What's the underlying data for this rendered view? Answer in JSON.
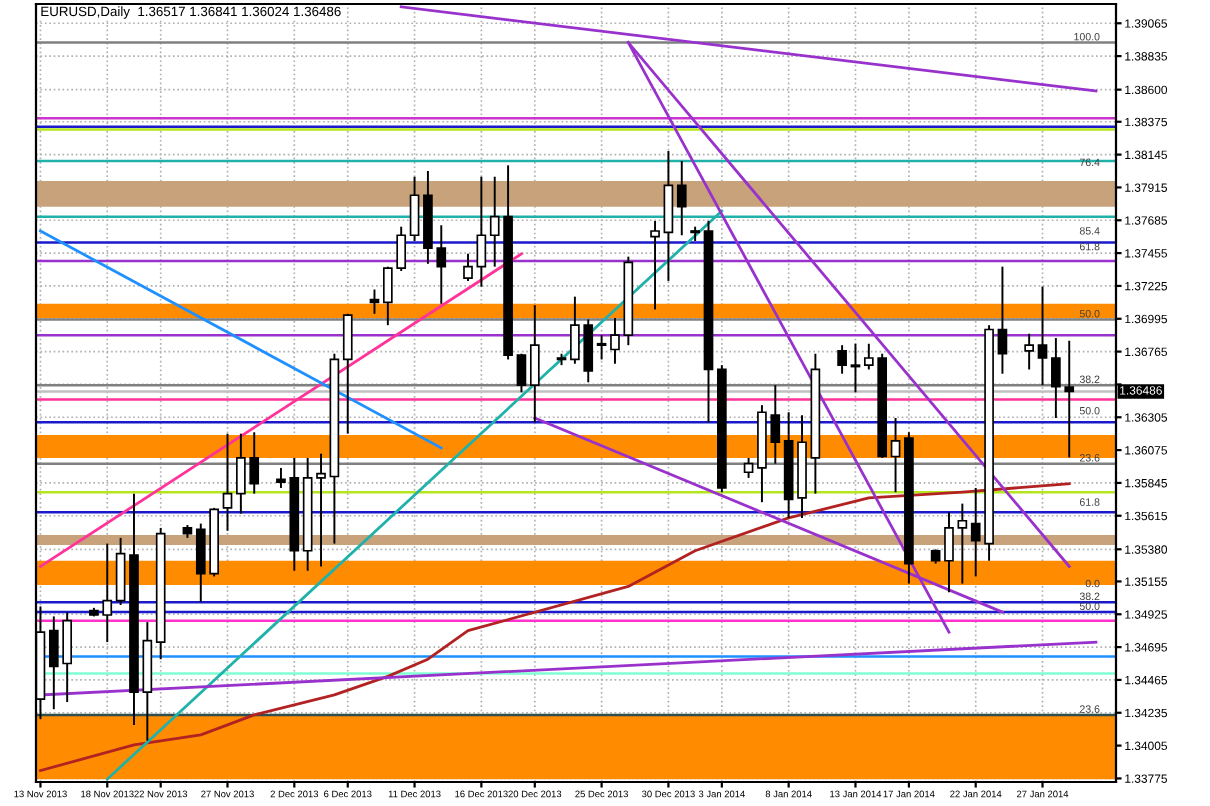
{
  "chart_data": {
    "type": "candlestick",
    "title": "EURUSD,Daily  1.36517 1.36841 1.36024 1.36486",
    "x": [
      "2013-11-13",
      "2013-11-14",
      "2013-11-15",
      "2013-11-17",
      "2013-11-18",
      "2013-11-19",
      "2013-11-20",
      "2013-11-21",
      "2013-11-22",
      "2013-11-24",
      "2013-11-25",
      "2013-11-26",
      "2013-11-27",
      "2013-11-28",
      "2013-11-29",
      "2013-12-01",
      "2013-12-02",
      "2013-12-03",
      "2013-12-04",
      "2013-12-05",
      "2013-12-06",
      "2013-12-08",
      "2013-12-09",
      "2013-12-10",
      "2013-12-11",
      "2013-12-12",
      "2013-12-13",
      "2013-12-15",
      "2013-12-16",
      "2013-12-17",
      "2013-12-18",
      "2013-12-19",
      "2013-12-20",
      "2013-12-22",
      "2013-12-23",
      "2013-12-24",
      "2013-12-25",
      "2013-12-26",
      "2013-12-27",
      "2013-12-29",
      "2013-12-30",
      "2013-12-31",
      "2014-01-01",
      "2014-01-02",
      "2014-01-03",
      "2014-01-05",
      "2014-01-06",
      "2014-01-07",
      "2014-01-08",
      "2014-01-09",
      "2014-01-10",
      "2014-01-12",
      "2014-01-13",
      "2014-01-14",
      "2014-01-15",
      "2014-01-16",
      "2014-01-17",
      "2014-01-19",
      "2014-01-20",
      "2014-01-21",
      "2014-01-22",
      "2014-01-23",
      "2014-01-24",
      "2014-01-26",
      "2014-01-27",
      "2014-01-28",
      "2014-01-29"
    ],
    "ohlc": [
      [
        1.3433,
        1.3498,
        1.3419,
        1.348
      ],
      [
        1.3481,
        1.3491,
        1.3426,
        1.3456
      ],
      [
        1.3458,
        1.3494,
        1.3431,
        1.3488
      ],
      [
        1.3495,
        1.3497,
        1.3491,
        1.3492
      ],
      [
        1.3492,
        1.3542,
        1.3473,
        1.3502
      ],
      [
        1.3502,
        1.3546,
        1.3499,
        1.3535
      ],
      [
        1.3534,
        1.3577,
        1.3415,
        1.3438
      ],
      [
        1.3438,
        1.3487,
        1.3404,
        1.3474
      ],
      [
        1.3473,
        1.3553,
        1.3461,
        1.3549
      ],
      [
        1.3553,
        1.3555,
        1.3546,
        1.3549
      ],
      [
        1.3552,
        1.3556,
        1.3501,
        1.3521
      ],
      [
        1.3521,
        1.3567,
        1.3519,
        1.3566
      ],
      [
        1.3567,
        1.3619,
        1.3551,
        1.3577
      ],
      [
        1.3577,
        1.3619,
        1.3563,
        1.3602
      ],
      [
        1.3602,
        1.362,
        1.3577,
        1.3584
      ],
      [
        1.3587,
        1.3595,
        1.3581,
        1.3585
      ],
      [
        1.3588,
        1.3602,
        1.3523,
        1.3537
      ],
      [
        1.3537,
        1.3602,
        1.3523,
        1.3588
      ],
      [
        1.3588,
        1.3605,
        1.3526,
        1.3591
      ],
      [
        1.3589,
        1.3675,
        1.3542,
        1.3671
      ],
      [
        1.3671,
        1.3703,
        1.3619,
        1.3702
      ],
      [
        1.3713,
        1.372,
        1.3703,
        1.3711
      ],
      [
        1.3711,
        1.3736,
        1.3695,
        1.3735
      ],
      [
        1.3735,
        1.3764,
        1.3733,
        1.3758
      ],
      [
        1.3758,
        1.3799,
        1.3754,
        1.3786
      ],
      [
        1.3786,
        1.3803,
        1.3738,
        1.3749
      ],
      [
        1.3749,
        1.3765,
        1.371,
        1.3736
      ],
      [
        1.3728,
        1.3745,
        1.3726,
        1.3736
      ],
      [
        1.3736,
        1.3799,
        1.3722,
        1.3758
      ],
      [
        1.3758,
        1.3799,
        1.3736,
        1.3771
      ],
      [
        1.3771,
        1.3807,
        1.3671,
        1.3674
      ],
      [
        1.3674,
        1.3675,
        1.3648,
        1.3653
      ],
      [
        1.3653,
        1.3709,
        1.3627,
        1.3681
      ],
      [
        1.3671,
        1.3675,
        1.3667,
        1.3672
      ],
      [
        1.3671,
        1.3715,
        1.3668,
        1.3695
      ],
      [
        1.3695,
        1.3699,
        1.3655,
        1.3663
      ],
      [
        1.3681,
        1.3688,
        1.3671,
        1.3682
      ],
      [
        1.3678,
        1.37,
        1.3668,
        1.3688
      ],
      [
        1.3688,
        1.3743,
        1.3681,
        1.3739
      ],
      [
        1.3757,
        1.3768,
        1.3706,
        1.3761
      ],
      [
        1.376,
        1.3817,
        1.3726,
        1.3793
      ],
      [
        1.3793,
        1.381,
        1.3758,
        1.3778
      ],
      [
        1.3761,
        1.3764,
        1.3754,
        1.376
      ],
      [
        1.3761,
        1.3768,
        1.3627,
        1.3664
      ],
      [
        1.3664,
        1.3667,
        1.3578,
        1.3581
      ],
      [
        1.3592,
        1.3602,
        1.3588,
        1.3598
      ],
      [
        1.3595,
        1.3639,
        1.3571,
        1.3634
      ],
      [
        1.3632,
        1.3653,
        1.3598,
        1.3613
      ],
      [
        1.3614,
        1.3634,
        1.356,
        1.3573
      ],
      [
        1.3574,
        1.3632,
        1.356,
        1.3613
      ],
      [
        1.3602,
        1.3675,
        1.3577,
        1.3664
      ],
      [
        1.3677,
        1.3681,
        1.3661,
        1.3667
      ],
      [
        1.3667,
        1.3682,
        1.3648,
        1.3666
      ],
      [
        1.3667,
        1.3682,
        1.3664,
        1.3672
      ],
      [
        1.3672,
        1.3675,
        1.3602,
        1.3603
      ],
      [
        1.3603,
        1.363,
        1.3578,
        1.3614
      ],
      [
        1.3616,
        1.362,
        1.3514,
        1.3528
      ],
      [
        1.3537,
        1.3538,
        1.3528,
        1.353
      ],
      [
        1.353,
        1.3564,
        1.3508,
        1.3553
      ],
      [
        1.3553,
        1.357,
        1.3514,
        1.3558
      ],
      [
        1.3556,
        1.3581,
        1.3519,
        1.3544
      ],
      [
        1.3542,
        1.3695,
        1.353,
        1.3692
      ],
      [
        1.3692,
        1.3736,
        1.3661,
        1.3675
      ],
      [
        1.3677,
        1.3689,
        1.3664,
        1.3681
      ],
      [
        1.3681,
        1.3722,
        1.3653,
        1.3672
      ],
      [
        1.3672,
        1.3686,
        1.363,
        1.3652
      ],
      [
        1.36517,
        1.36841,
        1.36024,
        1.36486
      ]
    ],
    "series": [
      {
        "type": "line",
        "color": "#b22222",
        "x": [
          "2013-11-13",
          "2013-11-20",
          "2013-11-25",
          "2013-11-29",
          "2013-12-05",
          "2013-12-09",
          "2013-12-12",
          "2013-12-15",
          "2013-12-27",
          "2014-01-01",
          "2014-01-08",
          "2014-01-14",
          "2014-01-21",
          "2014-01-29"
        ],
        "values": [
          1.3383,
          1.3401,
          1.3408,
          1.3422,
          1.3436,
          1.3449,
          1.3461,
          1.3481,
          1.3512,
          1.3537,
          1.356,
          1.3574,
          1.3578,
          1.3584
        ]
      },
      {
        "type": "line",
        "color": "#ff3399",
        "x": [
          "2013-11-13",
          "2013-12-19"
        ],
        "values": [
          1.3526,
          1.3745
        ]
      },
      {
        "type": "line",
        "color": "#20b2aa",
        "x": [
          "2013-11-18",
          "2014-01-03"
        ],
        "values": [
          1.3377,
          1.3775
        ]
      },
      {
        "type": "line",
        "color": "#1e90ff",
        "x": [
          "2013-11-13",
          "2013-12-13"
        ],
        "values": [
          1.3761,
          1.3609
        ]
      },
      {
        "type": "line",
        "color": "#9932cc",
        "x": [
          "2013-12-10",
          "2014-01-31"
        ],
        "values": [
          1.3918,
          1.3859
        ]
      },
      {
        "type": "line",
        "color": "#9932cc",
        "x": [
          "2013-12-20",
          "2014-01-24"
        ],
        "values": [
          1.363,
          1.3494
        ]
      },
      {
        "type": "line",
        "color": "#9932cc",
        "x": [
          "2013-12-27",
          "2014-01-29"
        ],
        "values": [
          1.3893,
          1.3526
        ]
      },
      {
        "type": "line",
        "color": "#9932cc",
        "x": [
          "2013-12-27",
          "2014-01-20"
        ],
        "values": [
          1.3893,
          1.348
        ]
      },
      {
        "type": "line",
        "color": "#9932cc",
        "x": [
          "2013-11-13",
          "2014-01-31"
        ],
        "values": [
          1.3436,
          1.3473
        ]
      }
    ],
    "bands": [
      {
        "axis": "y",
        "from": 1.3778,
        "to": 1.3796,
        "color": "#c8a27a"
      },
      {
        "axis": "y",
        "from": 1.37,
        "to": 1.371,
        "color": "#ff8c00"
      },
      {
        "axis": "y",
        "from": 1.3602,
        "to": 1.3618,
        "color": "#ff8c00"
      },
      {
        "axis": "y",
        "from": 1.3541,
        "to": 1.3548,
        "color": "#c8a27a"
      },
      {
        "axis": "y",
        "from": 1.3513,
        "to": 1.353,
        "color": "#ff8c00"
      },
      {
        "axis": "y",
        "from": 1.3377,
        "to": 1.3422,
        "color": "#ff8c00"
      }
    ],
    "ref_lines": [
      {
        "axis": "y",
        "value": 1.3893,
        "color": "#808080"
      },
      {
        "axis": "y",
        "value": 1.384,
        "color": "#cc33cc"
      },
      {
        "axis": "y",
        "value": 1.3834,
        "color": "#1a1acc"
      },
      {
        "axis": "y",
        "value": 1.3832,
        "color": "#b5e61d"
      },
      {
        "axis": "y",
        "value": 1.381,
        "color": "#20b2aa"
      },
      {
        "axis": "y",
        "value": 1.3771,
        "color": "#20b2aa"
      },
      {
        "axis": "y",
        "value": 1.3753,
        "color": "#1a1acc"
      },
      {
        "axis": "y",
        "value": 1.374,
        "color": "#9932cc"
      },
      {
        "axis": "y",
        "value": 1.3699,
        "color": "#808080"
      },
      {
        "axis": "y",
        "value": 1.3688,
        "color": "#9932cc"
      },
      {
        "axis": "y",
        "value": 1.3653,
        "color": "#808080"
      },
      {
        "axis": "y",
        "value": 1.36486,
        "color": "#c0c0c0",
        "label": "1.36486"
      },
      {
        "axis": "y",
        "value": 1.3643,
        "color": "#ff3399"
      },
      {
        "axis": "y",
        "value": 1.3627,
        "color": "#1a1acc"
      },
      {
        "axis": "y",
        "value": 1.3598,
        "color": "#808080"
      },
      {
        "axis": "y",
        "value": 1.3578,
        "color": "#b5e61d"
      },
      {
        "axis": "y",
        "value": 1.3564,
        "color": "#1a1acc"
      },
      {
        "axis": "y",
        "value": 1.3501,
        "color": "#1a1acc"
      },
      {
        "axis": "y",
        "value": 1.3494,
        "color": "#1a1acc"
      },
      {
        "axis": "y",
        "value": 1.3488,
        "color": "#ff33cc"
      },
      {
        "axis": "y",
        "value": 1.3463,
        "color": "#1e90ff"
      },
      {
        "axis": "y",
        "value": 1.3451,
        "color": "#7fffd4"
      },
      {
        "axis": "y",
        "value": 1.3422,
        "color": "#2f4f4f"
      }
    ],
    "annotations": [
      {
        "text": "100.0",
        "y": 1.3893
      },
      {
        "text": "76.4",
        "y": 1.3805
      },
      {
        "text": "85.4",
        "y": 1.3757
      },
      {
        "text": "61.8",
        "y": 1.3746
      },
      {
        "text": "50.0",
        "y": 1.3699
      },
      {
        "text": "38.2",
        "y": 1.3653
      },
      {
        "text": "50.0",
        "y": 1.3631
      },
      {
        "text": "23.6",
        "y": 1.3598
      },
      {
        "text": "61.8",
        "y": 1.3567
      },
      {
        "text": "0.0",
        "y": 1.351
      },
      {
        "text": "38.2",
        "y": 1.3501
      },
      {
        "text": "50.0",
        "y": 1.3494
      },
      {
        "text": "23.6",
        "y": 1.3422
      }
    ],
    "xlim": [
      "2013-11-12T16:00",
      "2014-02-01T12:00"
    ],
    "xticks": [
      {
        "value": "2013-11-13",
        "label": "13 Nov 2013"
      },
      {
        "value": "2013-11-18",
        "label": "18 Nov 2013"
      },
      {
        "value": "2013-11-22",
        "label": "22 Nov 2013"
      },
      {
        "value": "2013-11-27",
        "label": "27 Nov 2013"
      },
      {
        "value": "2013-12-02",
        "label": "2 Dec 2013"
      },
      {
        "value": "2013-12-06",
        "label": "6 Dec 2013"
      },
      {
        "value": "2013-12-11",
        "label": "11 Dec 2013"
      },
      {
        "value": "2013-12-16",
        "label": "16 Dec 2013"
      },
      {
        "value": "2013-12-20",
        "label": "20 Dec 2013"
      },
      {
        "value": "2013-12-25",
        "label": "25 Dec 2013"
      },
      {
        "value": "2013-12-30",
        "label": "30 Dec 2013"
      },
      {
        "value": "2014-01-03",
        "label": "3 Jan 2014"
      },
      {
        "value": "2014-01-08",
        "label": "8 Jan 2014"
      },
      {
        "value": "2014-01-13",
        "label": "13 Jan 2014"
      },
      {
        "value": "2014-01-17",
        "label": "17 Jan 2014"
      },
      {
        "value": "2014-01-22",
        "label": "22 Jan 2014"
      },
      {
        "value": "2014-01-27",
        "label": "27 Jan 2014"
      }
    ],
    "ylim": [
      1.3375,
      1.392
    ],
    "yticks": [
      {
        "value": 1.39065,
        "label": "1.39065"
      },
      {
        "value": 1.38835,
        "label": "1.38835"
      },
      {
        "value": 1.386,
        "label": "1.38600"
      },
      {
        "value": 1.38375,
        "label": "1.38375"
      },
      {
        "value": 1.38145,
        "label": "1.38145"
      },
      {
        "value": 1.37915,
        "label": "1.37915"
      },
      {
        "value": 1.37685,
        "label": "1.37685"
      },
      {
        "value": 1.37455,
        "label": "1.37455"
      },
      {
        "value": 1.37225,
        "label": "1.37225"
      },
      {
        "value": 1.36995,
        "label": "1.36995"
      },
      {
        "value": 1.36765,
        "label": "1.36765"
      },
      {
        "value": 1.36535,
        "label": null
      },
      {
        "value": 1.36305,
        "label": "1.36305"
      },
      {
        "value": 1.36075,
        "label": "1.36075"
      },
      {
        "value": 1.35845,
        "label": "1.35845"
      },
      {
        "value": 1.35615,
        "label": "1.35615"
      },
      {
        "value": 1.3538,
        "label": "1.35380"
      },
      {
        "value": 1.35155,
        "label": "1.35155"
      },
      {
        "value": 1.34925,
        "label": "1.34925"
      },
      {
        "value": 1.34695,
        "label": "1.34695"
      },
      {
        "value": 1.34465,
        "label": "1.34465"
      },
      {
        "value": 1.34235,
        "label": "1.34235"
      },
      {
        "value": 1.34005,
        "label": "1.34005"
      },
      {
        "value": 1.33775,
        "label": "1.33775"
      }
    ],
    "grid": true
  }
}
